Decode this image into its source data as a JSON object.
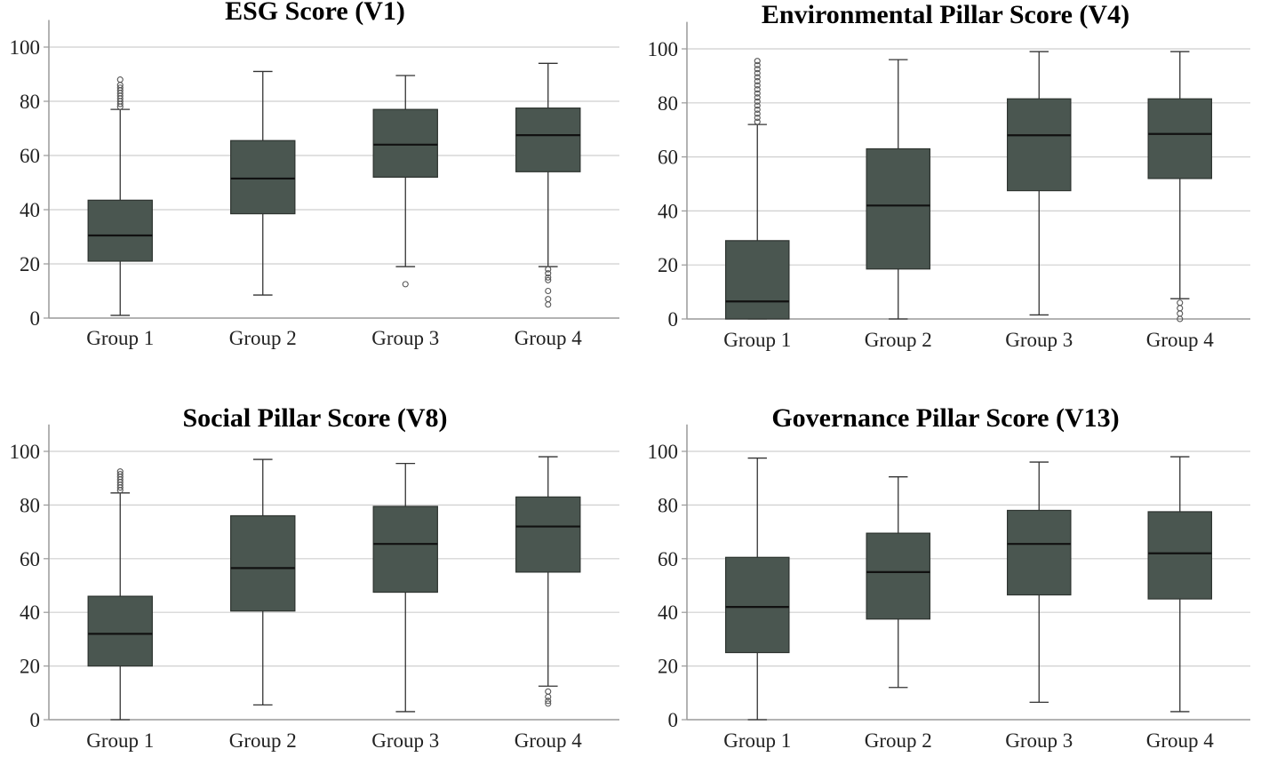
{
  "chart_data": [
    {
      "type": "box",
      "title": "ESG Score (V1)",
      "categories": [
        "Group 1",
        "Group 2",
        "Group 3",
        "Group 4"
      ],
      "yticks": [
        0,
        20,
        40,
        60,
        80,
        100
      ],
      "ylim": [
        0,
        110
      ],
      "grid": true,
      "box_color": "#4a5650",
      "boxes": [
        {
          "whisker_low": 1,
          "q1": 21,
          "median": 30.5,
          "q3": 43.5,
          "whisker_high": 77,
          "outliers": [
            78,
            79,
            80,
            81,
            82,
            83,
            84,
            85,
            86,
            88
          ]
        },
        {
          "whisker_low": 8.5,
          "q1": 38.5,
          "median": 51.5,
          "q3": 65.5,
          "whisker_high": 91,
          "outliers": []
        },
        {
          "whisker_low": 19,
          "q1": 52,
          "median": 64,
          "q3": 77,
          "whisker_high": 89.5,
          "outliers": [
            12.5
          ]
        },
        {
          "whisker_low": 19,
          "q1": 54,
          "median": 67.5,
          "q3": 77.5,
          "whisker_high": 94,
          "outliers": [
            18,
            16.5,
            15,
            14,
            10,
            7,
            5
          ]
        }
      ]
    },
    {
      "type": "box",
      "title": "Environmental Pillar Score (V4)",
      "categories": [
        "Group 1",
        "Group 2",
        "Group 3",
        "Group 4"
      ],
      "yticks": [
        0,
        20,
        40,
        60,
        80,
        100
      ],
      "ylim": [
        0,
        110
      ],
      "grid": true,
      "box_color": "#4a5650",
      "boxes": [
        {
          "whisker_low": 0,
          "q1": 0,
          "median": 6.5,
          "q3": 29,
          "whisker_high": 72,
          "outliers": [
            73,
            74.5,
            76,
            77.5,
            79,
            80.5,
            82,
            83.5,
            85,
            86.5,
            88,
            89.5,
            91,
            92.5,
            94,
            95.5
          ]
        },
        {
          "whisker_low": 0,
          "q1": 18.5,
          "median": 42,
          "q3": 63,
          "whisker_high": 96,
          "outliers": []
        },
        {
          "whisker_low": 1.5,
          "q1": 47.5,
          "median": 68,
          "q3": 81.5,
          "whisker_high": 99,
          "outliers": []
        },
        {
          "whisker_low": 7.5,
          "q1": 52,
          "median": 68.5,
          "q3": 81.5,
          "whisker_high": 99,
          "outliers": [
            6,
            4,
            2,
            0
          ]
        }
      ]
    },
    {
      "type": "box",
      "title": "Social Pillar Score (V8)",
      "categories": [
        "Group 1",
        "Group 2",
        "Group 3",
        "Group 4"
      ],
      "yticks": [
        0,
        20,
        40,
        60,
        80,
        100
      ],
      "ylim": [
        0,
        110
      ],
      "grid": true,
      "box_color": "#4a5650",
      "boxes": [
        {
          "whisker_low": 0,
          "q1": 20,
          "median": 32,
          "q3": 46,
          "whisker_high": 84.5,
          "outliers": [
            85.5,
            86.5,
            87.5,
            88.5,
            89.5,
            90.5,
            91.5,
            92.5
          ]
        },
        {
          "whisker_low": 5.5,
          "q1": 40.5,
          "median": 56.5,
          "q3": 76,
          "whisker_high": 97,
          "outliers": []
        },
        {
          "whisker_low": 3,
          "q1": 47.5,
          "median": 65.5,
          "q3": 79.5,
          "whisker_high": 95.5,
          "outliers": []
        },
        {
          "whisker_low": 12.5,
          "q1": 55,
          "median": 72,
          "q3": 83,
          "whisker_high": 98,
          "outliers": [
            10.5,
            8.5,
            7,
            6
          ]
        }
      ]
    },
    {
      "type": "box",
      "title": "Governance Pillar Score (V13)",
      "categories": [
        "Group 1",
        "Group 2",
        "Group 3",
        "Group 4"
      ],
      "yticks": [
        0,
        20,
        40,
        60,
        80,
        100
      ],
      "ylim": [
        0,
        110
      ],
      "grid": true,
      "box_color": "#4a5650",
      "boxes": [
        {
          "whisker_low": 0,
          "q1": 25,
          "median": 42,
          "q3": 60.5,
          "whisker_high": 97.5,
          "outliers": []
        },
        {
          "whisker_low": 12,
          "q1": 37.5,
          "median": 55,
          "q3": 69.5,
          "whisker_high": 90.5,
          "outliers": []
        },
        {
          "whisker_low": 6.5,
          "q1": 46.5,
          "median": 65.5,
          "q3": 78,
          "whisker_high": 96,
          "outliers": []
        },
        {
          "whisker_low": 3,
          "q1": 45,
          "median": 62,
          "q3": 77.5,
          "whisker_high": 98,
          "outliers": []
        }
      ]
    }
  ]
}
